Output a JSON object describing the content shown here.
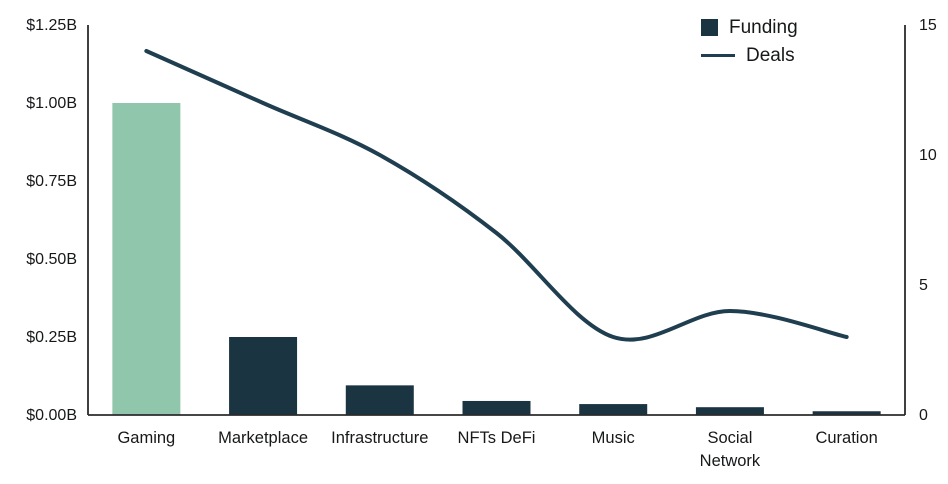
{
  "chart_data": {
    "type": "bar",
    "combo": "bar+line",
    "title": "",
    "categories": [
      "Gaming",
      "Marketplace",
      "Infrastructure",
      "NFTs DeFi",
      "Music",
      "Social Network",
      "Curation"
    ],
    "series": [
      {
        "name": "Funding",
        "type": "bar",
        "axis": "left",
        "unit": "$B",
        "values": [
          1.0,
          0.25,
          0.095,
          0.045,
          0.035,
          0.025,
          0.012
        ]
      },
      {
        "name": "Deals",
        "type": "line",
        "axis": "right",
        "values": [
          14,
          12,
          10,
          7,
          3,
          4,
          3
        ]
      }
    ],
    "left_axis": {
      "ticks": [
        "$1.25B",
        "$1.00B",
        "$0.75B",
        "$0.50B",
        "$0.25B",
        "$0.00B"
      ],
      "min": 0,
      "max": 1.25
    },
    "right_axis": {
      "ticks": [
        "15",
        "10",
        "5",
        "0"
      ],
      "min": 0,
      "max": 15
    },
    "legend": [
      {
        "label": "Funding",
        "swatch": "square"
      },
      {
        "label": "Deals",
        "swatch": "line"
      }
    ],
    "legend_position": "top-right",
    "grid": false,
    "highlighted_category": "Gaming",
    "colors": {
      "bar_default": "#1B3441",
      "bar_highlight": "#8FC6AC",
      "line": "#1F3E50",
      "axis": "#2B2B2B",
      "text": "#16181a"
    }
  }
}
